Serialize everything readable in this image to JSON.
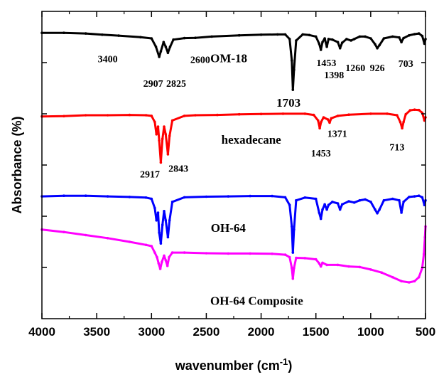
{
  "chart_data": {
    "type": "line",
    "title": "",
    "xlabel": "wavenumber (cm",
    "xlabel_sup": "-1",
    "xlabel_close": ")",
    "ylabel": "Absorbance (%)",
    "xlim": [
      4000,
      500
    ],
    "x_reversed": true,
    "y_tick_labels_shown": false,
    "grid": false,
    "x_ticks": [
      4000,
      3500,
      3000,
      2500,
      2000,
      1500,
      1000,
      500
    ],
    "x_tick_labels": [
      "4000",
      "3500",
      "3000",
      "2500",
      "2000",
      "1500",
      "1000",
      "500"
    ],
    "series": [
      {
        "name": "OM-18",
        "color": "#000000",
        "points": [
          [
            4000,
            0.93
          ],
          [
            3800,
            0.93
          ],
          [
            3600,
            0.928
          ],
          [
            3450,
            0.924
          ],
          [
            3300,
            0.921
          ],
          [
            3100,
            0.916
          ],
          [
            3000,
            0.912
          ],
          [
            2960,
            0.885
          ],
          [
            2930,
            0.852
          ],
          [
            2915,
            0.87
          ],
          [
            2890,
            0.9
          ],
          [
            2870,
            0.885
          ],
          [
            2850,
            0.865
          ],
          [
            2830,
            0.885
          ],
          [
            2800,
            0.908
          ],
          [
            2700,
            0.913
          ],
          [
            2600,
            0.914
          ],
          [
            2450,
            0.918
          ],
          [
            2200,
            0.922
          ],
          [
            2000,
            0.924
          ],
          [
            1850,
            0.925
          ],
          [
            1780,
            0.925
          ],
          [
            1740,
            0.91
          ],
          [
            1720,
            0.84
          ],
          [
            1710,
            0.745
          ],
          [
            1700,
            0.81
          ],
          [
            1680,
            0.905
          ],
          [
            1620,
            0.925
          ],
          [
            1560,
            0.923
          ],
          [
            1500,
            0.918
          ],
          [
            1470,
            0.895
          ],
          [
            1455,
            0.875
          ],
          [
            1440,
            0.9
          ],
          [
            1420,
            0.912
          ],
          [
            1400,
            0.885
          ],
          [
            1385,
            0.91
          ],
          [
            1350,
            0.908
          ],
          [
            1300,
            0.9
          ],
          [
            1280,
            0.88
          ],
          [
            1260,
            0.898
          ],
          [
            1220,
            0.91
          ],
          [
            1180,
            0.905
          ],
          [
            1150,
            0.91
          ],
          [
            1100,
            0.918
          ],
          [
            1050,
            0.918
          ],
          [
            1000,
            0.912
          ],
          [
            960,
            0.893
          ],
          [
            940,
            0.88
          ],
          [
            920,
            0.89
          ],
          [
            880,
            0.912
          ],
          [
            800,
            0.918
          ],
          [
            740,
            0.915
          ],
          [
            720,
            0.9
          ],
          [
            700,
            0.913
          ],
          [
            650,
            0.922
          ],
          [
            600,
            0.926
          ],
          [
            560,
            0.928
          ],
          [
            530,
            0.92
          ],
          [
            510,
            0.895
          ],
          [
            500,
            0.91
          ]
        ]
      },
      {
        "name": "hexadecane",
        "color": "#ff0000",
        "points": [
          [
            4000,
            0.658
          ],
          [
            3800,
            0.659
          ],
          [
            3600,
            0.662
          ],
          [
            3400,
            0.662
          ],
          [
            3200,
            0.663
          ],
          [
            3050,
            0.662
          ],
          [
            3000,
            0.66
          ],
          [
            2970,
            0.64
          ],
          [
            2955,
            0.6
          ],
          [
            2940,
            0.625
          ],
          [
            2930,
            0.58
          ],
          [
            2915,
            0.508
          ],
          [
            2900,
            0.585
          ],
          [
            2885,
            0.625
          ],
          [
            2870,
            0.6
          ],
          [
            2850,
            0.535
          ],
          [
            2835,
            0.595
          ],
          [
            2810,
            0.645
          ],
          [
            2700,
            0.66
          ],
          [
            2600,
            0.662
          ],
          [
            2400,
            0.663
          ],
          [
            2200,
            0.665
          ],
          [
            2000,
            0.666
          ],
          [
            1800,
            0.667
          ],
          [
            1600,
            0.667
          ],
          [
            1520,
            0.663
          ],
          [
            1480,
            0.645
          ],
          [
            1465,
            0.62
          ],
          [
            1453,
            0.64
          ],
          [
            1430,
            0.655
          ],
          [
            1390,
            0.648
          ],
          [
            1375,
            0.638
          ],
          [
            1360,
            0.652
          ],
          [
            1300,
            0.66
          ],
          [
            1200,
            0.664
          ],
          [
            1000,
            0.667
          ],
          [
            850,
            0.667
          ],
          [
            760,
            0.662
          ],
          [
            730,
            0.64
          ],
          [
            713,
            0.62
          ],
          [
            700,
            0.64
          ],
          [
            680,
            0.665
          ],
          [
            640,
            0.678
          ],
          [
            600,
            0.68
          ],
          [
            560,
            0.679
          ],
          [
            530,
            0.67
          ],
          [
            510,
            0.645
          ],
          [
            500,
            0.655
          ]
        ]
      },
      {
        "name": "OH-64",
        "color": "#0000ff",
        "points": [
          [
            4000,
            0.398
          ],
          [
            3800,
            0.4
          ],
          [
            3600,
            0.4
          ],
          [
            3400,
            0.398
          ],
          [
            3200,
            0.396
          ],
          [
            3050,
            0.394
          ],
          [
            3000,
            0.39
          ],
          [
            2970,
            0.36
          ],
          [
            2955,
            0.32
          ],
          [
            2940,
            0.345
          ],
          [
            2930,
            0.28
          ],
          [
            2915,
            0.245
          ],
          [
            2900,
            0.305
          ],
          [
            2885,
            0.35
          ],
          [
            2870,
            0.32
          ],
          [
            2850,
            0.265
          ],
          [
            2835,
            0.32
          ],
          [
            2810,
            0.38
          ],
          [
            2700,
            0.395
          ],
          [
            2500,
            0.397
          ],
          [
            2300,
            0.398
          ],
          [
            2100,
            0.399
          ],
          [
            1900,
            0.399
          ],
          [
            1780,
            0.395
          ],
          [
            1740,
            0.37
          ],
          [
            1720,
            0.3
          ],
          [
            1710,
            0.215
          ],
          [
            1700,
            0.29
          ],
          [
            1680,
            0.385
          ],
          [
            1600,
            0.394
          ],
          [
            1500,
            0.39
          ],
          [
            1470,
            0.345
          ],
          [
            1455,
            0.325
          ],
          [
            1440,
            0.355
          ],
          [
            1420,
            0.372
          ],
          [
            1400,
            0.355
          ],
          [
            1385,
            0.37
          ],
          [
            1350,
            0.38
          ],
          [
            1300,
            0.375
          ],
          [
            1280,
            0.355
          ],
          [
            1260,
            0.372
          ],
          [
            1200,
            0.382
          ],
          [
            1150,
            0.378
          ],
          [
            1100,
            0.385
          ],
          [
            1050,
            0.388
          ],
          [
            1000,
            0.38
          ],
          [
            960,
            0.355
          ],
          [
            940,
            0.343
          ],
          [
            920,
            0.355
          ],
          [
            880,
            0.385
          ],
          [
            800,
            0.39
          ],
          [
            740,
            0.385
          ],
          [
            720,
            0.345
          ],
          [
            700,
            0.38
          ],
          [
            650,
            0.396
          ],
          [
            600,
            0.398
          ],
          [
            560,
            0.4
          ],
          [
            530,
            0.395
          ],
          [
            510,
            0.37
          ],
          [
            500,
            0.385
          ]
        ]
      },
      {
        "name": "OH-64 Composite",
        "color": "#ff00ff",
        "points": [
          [
            4000,
            0.29
          ],
          [
            3800,
            0.282
          ],
          [
            3600,
            0.272
          ],
          [
            3400,
            0.262
          ],
          [
            3200,
            0.25
          ],
          [
            3050,
            0.24
          ],
          [
            3000,
            0.236
          ],
          [
            2970,
            0.215
          ],
          [
            2950,
            0.2
          ],
          [
            2935,
            0.18
          ],
          [
            2920,
            0.162
          ],
          [
            2905,
            0.185
          ],
          [
            2885,
            0.205
          ],
          [
            2870,
            0.19
          ],
          [
            2855,
            0.172
          ],
          [
            2840,
            0.2
          ],
          [
            2810,
            0.215
          ],
          [
            2700,
            0.215
          ],
          [
            2500,
            0.213
          ],
          [
            2300,
            0.212
          ],
          [
            2100,
            0.212
          ],
          [
            1900,
            0.211
          ],
          [
            1780,
            0.208
          ],
          [
            1740,
            0.2
          ],
          [
            1720,
            0.165
          ],
          [
            1710,
            0.13
          ],
          [
            1700,
            0.165
          ],
          [
            1680,
            0.198
          ],
          [
            1600,
            0.197
          ],
          [
            1500,
            0.193
          ],
          [
            1470,
            0.18
          ],
          [
            1455,
            0.17
          ],
          [
            1440,
            0.182
          ],
          [
            1400,
            0.175
          ],
          [
            1300,
            0.175
          ],
          [
            1200,
            0.17
          ],
          [
            1100,
            0.168
          ],
          [
            1000,
            0.16
          ],
          [
            900,
            0.15
          ],
          [
            800,
            0.135
          ],
          [
            720,
            0.122
          ],
          [
            650,
            0.118
          ],
          [
            600,
            0.122
          ],
          [
            560,
            0.135
          ],
          [
            530,
            0.165
          ],
          [
            515,
            0.21
          ],
          [
            505,
            0.265
          ],
          [
            500,
            0.3
          ]
        ]
      }
    ],
    "annotations": [
      {
        "text": "3400",
        "x": 3400,
        "y": 0.835,
        "size": "normal"
      },
      {
        "text": "2907",
        "x": 2985,
        "y": 0.755,
        "size": "normal"
      },
      {
        "text": "2825",
        "x": 2775,
        "y": 0.755,
        "size": "normal"
      },
      {
        "text": "2600",
        "x": 2555,
        "y": 0.832,
        "size": "normal"
      },
      {
        "text": "OM-18",
        "x": 2295,
        "y": 0.835,
        "size": "series"
      },
      {
        "text": "1453",
        "x": 1405,
        "y": 0.822,
        "size": "normal"
      },
      {
        "text": "1398",
        "x": 1335,
        "y": 0.782,
        "size": "normal"
      },
      {
        "text": "1260",
        "x": 1140,
        "y": 0.805,
        "size": "normal"
      },
      {
        "text": "926",
        "x": 940,
        "y": 0.805,
        "size": "normal"
      },
      {
        "text": "703",
        "x": 680,
        "y": 0.82,
        "size": "normal"
      },
      {
        "text": "1703",
        "x": 1750,
        "y": 0.69,
        "size": "big"
      },
      {
        "text": "hexadecane",
        "x": 2090,
        "y": 0.57,
        "size": "series"
      },
      {
        "text": "1453",
        "x": 1455,
        "y": 0.528,
        "size": "normal"
      },
      {
        "text": "1371",
        "x": 1305,
        "y": 0.592,
        "size": "normal"
      },
      {
        "text": "713",
        "x": 760,
        "y": 0.548,
        "size": "normal"
      },
      {
        "text": "2917",
        "x": 3015,
        "y": 0.46,
        "size": "normal"
      },
      {
        "text": "2843",
        "x": 2755,
        "y": 0.478,
        "size": "normal"
      },
      {
        "text": "OH-64",
        "x": 2300,
        "y": 0.282,
        "size": "series"
      },
      {
        "text": "OH-64 Composite",
        "x": 2040,
        "y": 0.045,
        "size": "series"
      }
    ]
  }
}
